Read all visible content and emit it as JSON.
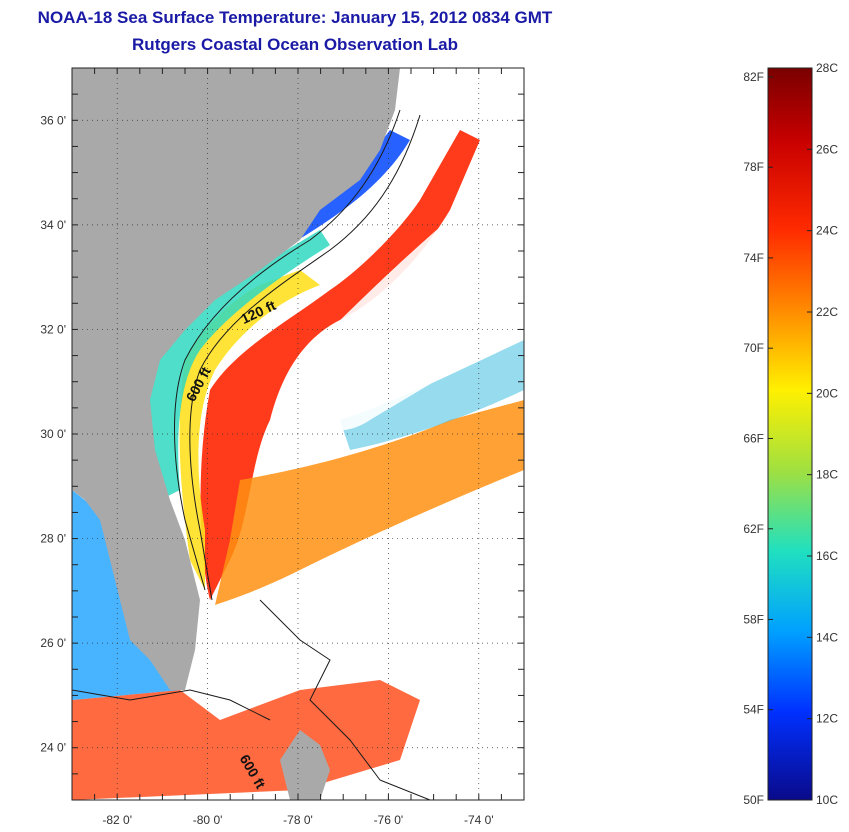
{
  "title": {
    "line1": "NOAA-18 Sea Surface Temperature:  January 15, 2012 0834 GMT",
    "line2": "Rutgers Coastal Ocean Observation Lab"
  },
  "map": {
    "lon_range": [
      -83,
      -73
    ],
    "lat_range": [
      23,
      37
    ],
    "lon_ticks": [
      {
        "value": -82,
        "label": "-82 0'"
      },
      {
        "value": -80,
        "label": "-80 0'"
      },
      {
        "value": -78,
        "label": "-78 0'"
      },
      {
        "value": -76,
        "label": "-76 0'"
      },
      {
        "value": -74,
        "label": "-74 0'"
      }
    ],
    "lat_ticks": [
      {
        "value": 24,
        "label": "24 0'"
      },
      {
        "value": 26,
        "label": "26 0'"
      },
      {
        "value": 28,
        "label": "28 0'"
      },
      {
        "value": 30,
        "label": "30 0'"
      },
      {
        "value": 32,
        "label": "32 0'"
      },
      {
        "value": 34,
        "label": "34 0'"
      },
      {
        "value": 36,
        "label": "36 0'"
      }
    ],
    "gridlines": true,
    "colors": {
      "land": "#a9a9a9",
      "no_data": "#ffffff",
      "contour": "#1a1a1a"
    },
    "contour_labels": [
      {
        "text": "120 ft",
        "lon": -79.2,
        "lat": 32.1,
        "rotate": -25
      },
      {
        "text": "600 ft",
        "lon": -80.3,
        "lat": 30.6,
        "rotate": -62
      },
      {
        "text": "600 ft",
        "lon": -79.3,
        "lat": 23.8,
        "rotate": 60
      }
    ]
  },
  "colorbar": {
    "f_labels": [
      {
        "label": "82F",
        "celsius": 27.78
      },
      {
        "label": "78F",
        "celsius": 25.56
      },
      {
        "label": "74F",
        "celsius": 23.33
      },
      {
        "label": "70F",
        "celsius": 21.11
      },
      {
        "label": "66F",
        "celsius": 18.89
      },
      {
        "label": "62F",
        "celsius": 16.67
      },
      {
        "label": "58F",
        "celsius": 14.44
      },
      {
        "label": "54F",
        "celsius": 12.22
      },
      {
        "label": "50F",
        "celsius": 10.0
      }
    ],
    "c_labels": [
      {
        "label": "28C",
        "celsius": 28
      },
      {
        "label": "26C",
        "celsius": 26
      },
      {
        "label": "24C",
        "celsius": 24
      },
      {
        "label": "22C",
        "celsius": 22
      },
      {
        "label": "20C",
        "celsius": 20
      },
      {
        "label": "18C",
        "celsius": 18
      },
      {
        "label": "16C",
        "celsius": 16
      },
      {
        "label": "14C",
        "celsius": 14
      },
      {
        "label": "12C",
        "celsius": 12
      },
      {
        "label": "10C",
        "celsius": 10
      }
    ],
    "range_celsius": [
      10,
      28
    ]
  }
}
